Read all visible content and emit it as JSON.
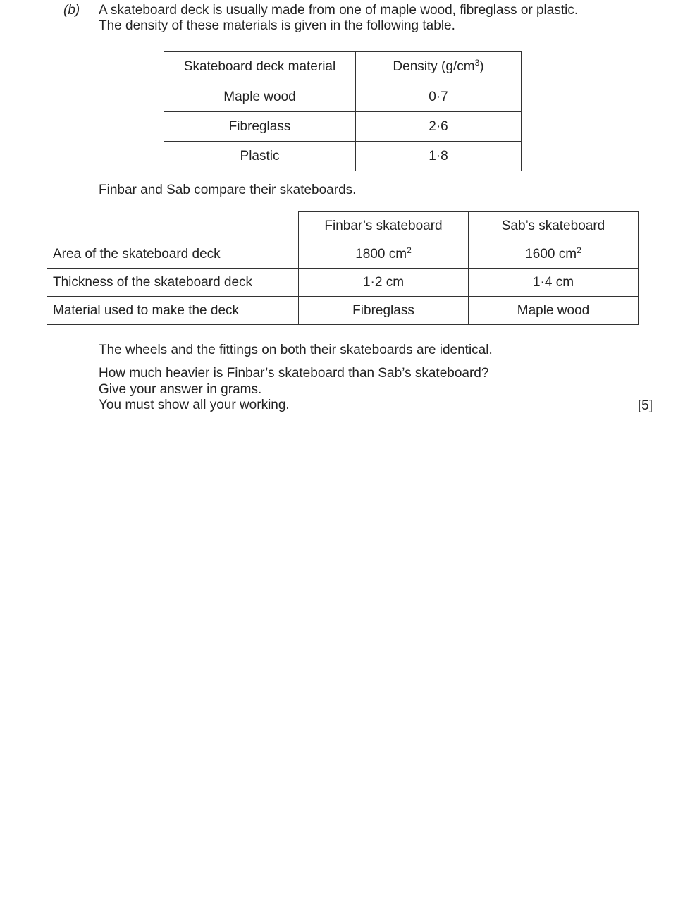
{
  "question": {
    "part_label": "(b)",
    "intro_line1": "A skateboard deck is usually made from one of maple wood, fibreglass or plastic.",
    "intro_line2": "The density of these materials is given in the following table."
  },
  "density_table": {
    "headers": [
      "Skateboard deck material",
      "Density (g/cm",
      "3",
      ")"
    ],
    "rows": [
      {
        "material": "Maple wood",
        "density": "0·7"
      },
      {
        "material": "Fibreglass",
        "density": "2·6"
      },
      {
        "material": "Plastic",
        "density": "1·8"
      }
    ]
  },
  "compare_text": "Finbar and Sab compare their skateboards.",
  "compare_table": {
    "headers": [
      "Finbar’s skateboard",
      "Sab’s skateboard"
    ],
    "rows": [
      {
        "label": "Area of the skateboard deck",
        "finbar": "1800 cm",
        "finbar_sup": "2",
        "sab": "1600 cm",
        "sab_sup": "2"
      },
      {
        "label": "Thickness of the skateboard deck",
        "finbar": "1·2 cm",
        "sab": "1·4 cm"
      },
      {
        "label": "Material used to make the deck",
        "finbar": "Fibreglass",
        "sab": "Maple wood"
      }
    ]
  },
  "wheels_text": "The wheels and the fittings on both their skateboards are identical.",
  "prompt_line1": "How much heavier is Finbar’s skateboard than Sab’s skateboard?",
  "prompt_line2": "Give your answer in grams.",
  "prompt_line3": "You must show all your working.",
  "marks": "[5]"
}
